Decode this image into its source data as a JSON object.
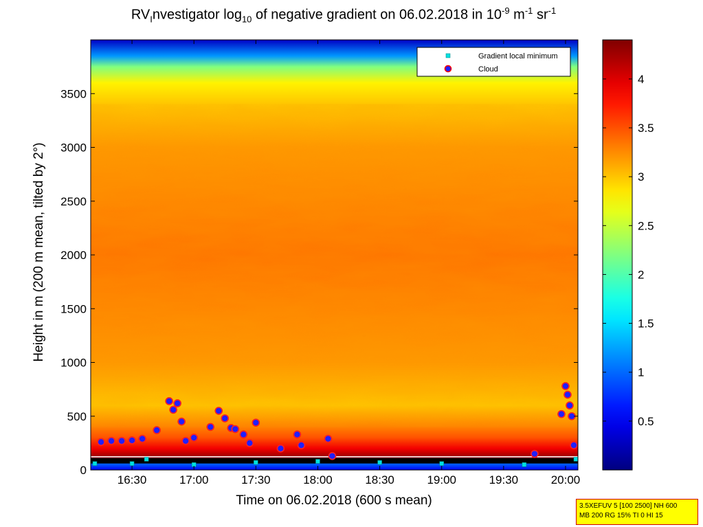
{
  "title": {
    "prefix": "RV",
    "sub1": "I",
    "part1": "nvestigator log",
    "sub2": "10",
    "part2": " of negative gradient on 06.02.2018 in 10",
    "sup1": "-9",
    "part3": " m",
    "sup2": "-1",
    "part4": " sr",
    "sup3": "-1"
  },
  "info_box": {
    "line1": "3.5XEFUV 5 [100 2500] NH 600",
    "line2": "MB 200 RG 15% TI 0 HI 15"
  },
  "chart_data": {
    "type": "heatmap",
    "xlabel": "Time on 06.02.2018 (600 s mean)",
    "ylabel": "Height in m (200 m mean, tilted by 2°)",
    "xlim": [
      "16:10",
      "20:06"
    ],
    "ylim": [
      0,
      4000
    ],
    "x_ticks": [
      "16:30",
      "17:00",
      "17:30",
      "18:00",
      "18:30",
      "19:00",
      "19:30",
      "20:00"
    ],
    "y_ticks": [
      0,
      500,
      1000,
      1500,
      2000,
      2500,
      3000,
      3500
    ],
    "colorbar": {
      "colormap": "jet",
      "range": [
        0,
        4.4
      ],
      "ticks": [
        0.5,
        1,
        1.5,
        2,
        2.5,
        3,
        3.5,
        4
      ]
    },
    "legend": {
      "position": "top-right",
      "entries": [
        {
          "label": "Gradient local minimum",
          "marker": "square",
          "color": "#00e0e0"
        },
        {
          "label": "Cloud",
          "marker": "circle",
          "color": "#ff0000",
          "edge": "#2020ff"
        }
      ]
    },
    "field_description_values": {
      "height_profile": [
        {
          "h": 0,
          "v": 0.5
        },
        {
          "h": 60,
          "v": 1.0
        },
        {
          "h": 120,
          "v": 4.3
        },
        {
          "h": 200,
          "v": 3.9
        },
        {
          "h": 300,
          "v": 3.5
        },
        {
          "h": 400,
          "v": 3.3
        },
        {
          "h": 600,
          "v": 3.0
        },
        {
          "h": 1000,
          "v": 3.2
        },
        {
          "h": 2000,
          "v": 3.35
        },
        {
          "h": 3000,
          "v": 3.2
        },
        {
          "h": 3400,
          "v": 3.0
        },
        {
          "h": 3600,
          "v": 2.8
        },
        {
          "h": 3750,
          "v": 2.2
        },
        {
          "h": 3850,
          "v": 1.2
        },
        {
          "h": 4000,
          "v": 0.3
        }
      ]
    },
    "gradient_minimum": [
      {
        "t": "16:12",
        "h": 60
      },
      {
        "t": "16:30",
        "h": 60
      },
      {
        "t": "16:37",
        "h": 100
      },
      {
        "t": "17:00",
        "h": 50
      },
      {
        "t": "17:30",
        "h": 70
      },
      {
        "t": "18:00",
        "h": 80
      },
      {
        "t": "18:30",
        "h": 70
      },
      {
        "t": "19:00",
        "h": 60
      },
      {
        "t": "19:40",
        "h": 50
      },
      {
        "t": "20:05",
        "h": 100
      }
    ],
    "clouds": [
      {
        "t": "16:15",
        "h": 260
      },
      {
        "t": "16:20",
        "h": 270
      },
      {
        "t": "16:25",
        "h": 270
      },
      {
        "t": "16:30",
        "h": 275
      },
      {
        "t": "16:35",
        "h": 290
      },
      {
        "t": "16:42",
        "h": 370
      },
      {
        "t": "16:48",
        "h": 640
      },
      {
        "t": "16:50",
        "h": 560
      },
      {
        "t": "16:52",
        "h": 620
      },
      {
        "t": "16:54",
        "h": 450
      },
      {
        "t": "16:56",
        "h": 270
      },
      {
        "t": "17:00",
        "h": 300
      },
      {
        "t": "17:08",
        "h": 400
      },
      {
        "t": "17:12",
        "h": 550
      },
      {
        "t": "17:15",
        "h": 480
      },
      {
        "t": "17:18",
        "h": 390
      },
      {
        "t": "17:20",
        "h": 380
      },
      {
        "t": "17:24",
        "h": 330
      },
      {
        "t": "17:27",
        "h": 250
      },
      {
        "t": "17:30",
        "h": 440
      },
      {
        "t": "17:42",
        "h": 200
      },
      {
        "t": "17:50",
        "h": 330
      },
      {
        "t": "17:52",
        "h": 230
      },
      {
        "t": "18:05",
        "h": 290
      },
      {
        "t": "18:07",
        "h": 130
      },
      {
        "t": "19:45",
        "h": 150
      },
      {
        "t": "19:58",
        "h": 520
      },
      {
        "t": "20:00",
        "h": 780
      },
      {
        "t": "20:01",
        "h": 700
      },
      {
        "t": "20:02",
        "h": 600
      },
      {
        "t": "20:03",
        "h": 500
      },
      {
        "t": "20:04",
        "h": 230
      }
    ],
    "ground_cloud_band": {
      "h_low": 60,
      "h_high": 110
    }
  }
}
